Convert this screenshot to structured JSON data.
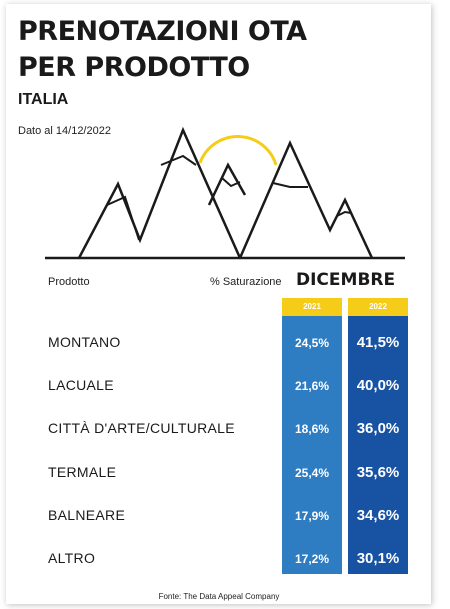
{
  "title_line1": "PRENOTAZIONI OTA",
  "title_line2": "PER PRODOTTO",
  "subtitle": "ITALIA",
  "date_note": "Dato al 14/12/2022",
  "headers": {
    "product": "Prodotto",
    "saturation": "% Saturazione",
    "month": "DICEMBRE"
  },
  "colors": {
    "yellow": "#f5cc18",
    "blue_2021": "#2e7cc2",
    "blue_2022": "#1752a3"
  },
  "source": "Fonte: The Data Appeal Company",
  "chart_data": {
    "type": "table",
    "columns": [
      "2021",
      "2022"
    ],
    "rows": [
      {
        "label": "MONTANO",
        "values": [
          "24,5%",
          "41,5%"
        ]
      },
      {
        "label": "LACUALE",
        "values": [
          "21,6%",
          "40,0%"
        ]
      },
      {
        "label": "CITTÀ D'ARTE/CULTURALE",
        "values": [
          "18,6%",
          "36,0%"
        ]
      },
      {
        "label": "TERMALE",
        "values": [
          "25,4%",
          "35,6%"
        ]
      },
      {
        "label": "BALNEARE",
        "values": [
          "17,9%",
          "34,6%"
        ]
      },
      {
        "label": "ALTRO",
        "values": [
          "17,2%",
          "30,1%"
        ]
      }
    ]
  }
}
